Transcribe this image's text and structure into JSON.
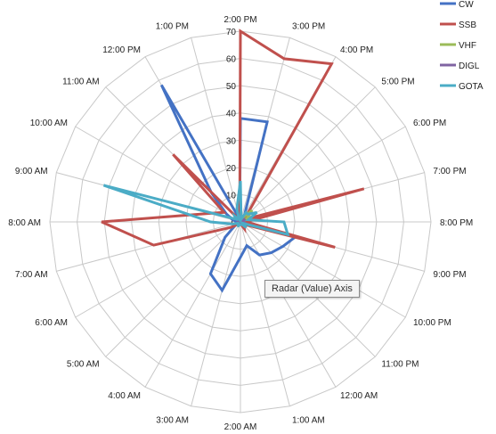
{
  "chart_data": {
    "type": "radar",
    "title": "",
    "categories": [
      "2:00 PM",
      "3:00 PM",
      "4:00 PM",
      "5:00 PM",
      "6:00 PM",
      "7:00 PM",
      "8:00 PM",
      "9:00 PM",
      "10:00 PM",
      "11:00 PM",
      "12:00 AM",
      "1:00 AM",
      "2:00 AM",
      "3:00 AM",
      "4:00 AM",
      "5:00 AM",
      "6:00 AM",
      "7:00 AM",
      "8:00 AM",
      "9:00 AM",
      "10:00 AM",
      "11:00 AM",
      "12:00 PM",
      "1:00 PM"
    ],
    "value_axis": {
      "min": 0,
      "max": 70,
      "major_unit": 10,
      "ticks": [
        0,
        10,
        20,
        30,
        40,
        50,
        60,
        70
      ]
    },
    "legend_position": "top-right",
    "series": [
      {
        "name": "CW",
        "color": "#4472C4",
        "values": [
          38,
          38,
          3,
          2,
          1,
          2,
          2,
          21,
          18,
          16,
          14,
          9,
          13,
          26,
          22,
          8,
          2,
          1,
          1,
          3,
          6,
          15,
          58,
          1
        ]
      },
      {
        "name": "SSB",
        "color": "#C0504D",
        "values": [
          70,
          62,
          67,
          3,
          2,
          47,
          2,
          36,
          2,
          2,
          3,
          1,
          1,
          1,
          1,
          1,
          4,
          33,
          51,
          12,
          7,
          35,
          1,
          1
        ]
      },
      {
        "name": "VHF",
        "color": "#9BBB59",
        "values": [
          0,
          1,
          2,
          6,
          3,
          1,
          0,
          0,
          0,
          0,
          0,
          0,
          0,
          0,
          0,
          0,
          0,
          0,
          0,
          0,
          0,
          0,
          0,
          0
        ]
      },
      {
        "name": "DIGL",
        "color": "#8064A2",
        "values": [
          1,
          1,
          1,
          1,
          2,
          1,
          1,
          2,
          1,
          1,
          1,
          0,
          0,
          0,
          0,
          0,
          0,
          1,
          1,
          1,
          1,
          1,
          1,
          1
        ]
      },
      {
        "name": "GOTA",
        "color": "#4BACC6",
        "values": [
          15,
          1,
          4,
          4,
          7,
          3,
          16,
          18,
          1,
          3,
          1,
          1,
          1,
          1,
          2,
          1,
          1,
          3,
          11,
          52,
          2,
          3,
          1,
          5
        ]
      }
    ]
  },
  "tooltip": {
    "text": "Radar (Value) Axis"
  }
}
